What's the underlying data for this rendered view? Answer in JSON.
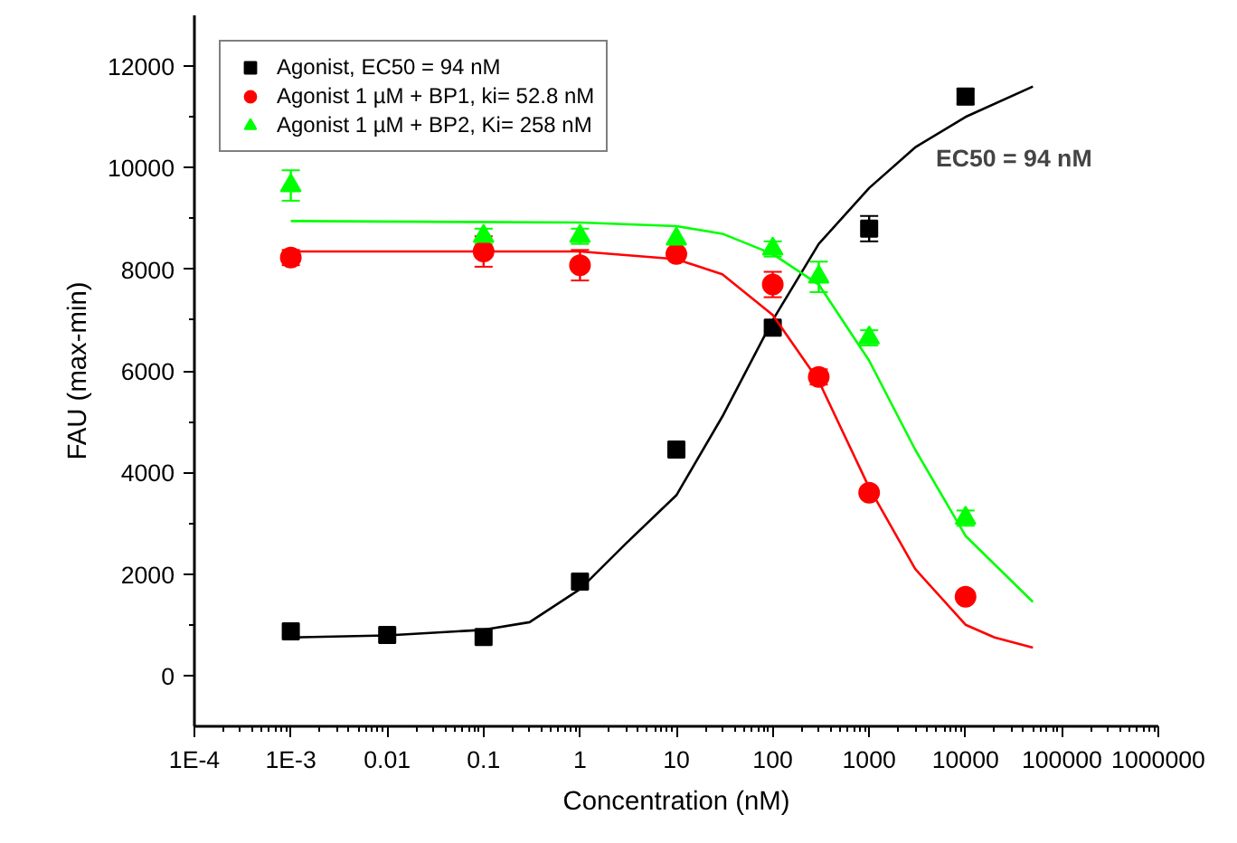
{
  "chart_data": {
    "type": "scatter",
    "xlabel": "Concentration (nM)",
    "ylabel": "FAU (max-min)",
    "log": "x",
    "grid": false,
    "legend": "top left",
    "xlim": [
      0.0001,
      1000000
    ],
    "ylim": [
      -1000,
      13000
    ],
    "xticks": [
      {
        "value": 0.0001,
        "label": "1E-4"
      },
      {
        "value": 0.001,
        "label": "1E-3"
      },
      0.01,
      0.1,
      1,
      10,
      100,
      1000,
      10000,
      100000,
      1000000
    ],
    "yticks": [
      0,
      2000,
      4000,
      6000,
      8000,
      10000,
      12000
    ],
    "annotations": [
      "EC50 = 94 nM"
    ],
    "series": [
      {
        "name": "Agonist, EC50 = 94 nM",
        "color": "#000000",
        "marker": "square",
        "x": [
          0.001,
          0.01,
          0.1,
          1,
          10,
          100,
          1000,
          10000
        ],
        "values": [
          870,
          800,
          760,
          1850,
          4450,
          6850,
          8800,
          11400
        ],
        "errors": [
          null,
          null,
          null,
          null,
          null,
          null,
          250,
          150
        ]
      },
      {
        "name": "Agonist 1 µM + BP1, ki= 52.8 nM",
        "color": "#ff0000",
        "marker": "circle",
        "x": [
          0.001,
          0.1,
          1,
          10,
          100,
          300,
          1000,
          10000
        ],
        "values": [
          8230,
          8350,
          8080,
          8300,
          7700,
          5880,
          3600,
          1550
        ],
        "errors": [
          150,
          300,
          300,
          null,
          250,
          150,
          null,
          null
        ]
      },
      {
        "name": "Agonist 1 µM + BP2, Ki= 258 nM",
        "color": "#00ff00",
        "marker": "triangle",
        "x": [
          0.001,
          0.1,
          1,
          10,
          100,
          300,
          1000,
          10000
        ],
        "values": [
          9650,
          8650,
          8650,
          8600,
          8400,
          7850,
          6650,
          3100
        ],
        "errors": [
          300,
          150,
          150,
          null,
          150,
          300,
          150,
          150
        ]
      },
      {
        "type": "line",
        "color": "#000000",
        "x": [
          0.001,
          0.01,
          0.1,
          0.3,
          1,
          3,
          10,
          30,
          100,
          300,
          1000,
          3000,
          10000,
          50000
        ],
        "values": [
          750,
          790,
          900,
          1050,
          1700,
          2600,
          3550,
          5100,
          7000,
          8500,
          9600,
          10400,
          11000,
          11600
        ]
      },
      {
        "type": "line",
        "color": "#ff0000",
        "x": [
          0.001,
          1,
          10,
          30,
          100,
          300,
          1000,
          3000,
          10000,
          20000,
          50000
        ],
        "values": [
          8350,
          8350,
          8200,
          7900,
          7100,
          5800,
          3700,
          2100,
          1000,
          750,
          550
        ]
      },
      {
        "type": "line",
        "color": "#00ff00",
        "x": [
          0.001,
          1,
          10,
          30,
          100,
          300,
          1000,
          3000,
          10000,
          50000
        ],
        "values": [
          8950,
          8920,
          8850,
          8700,
          8300,
          7700,
          6200,
          4450,
          2750,
          1450
        ]
      }
    ]
  }
}
